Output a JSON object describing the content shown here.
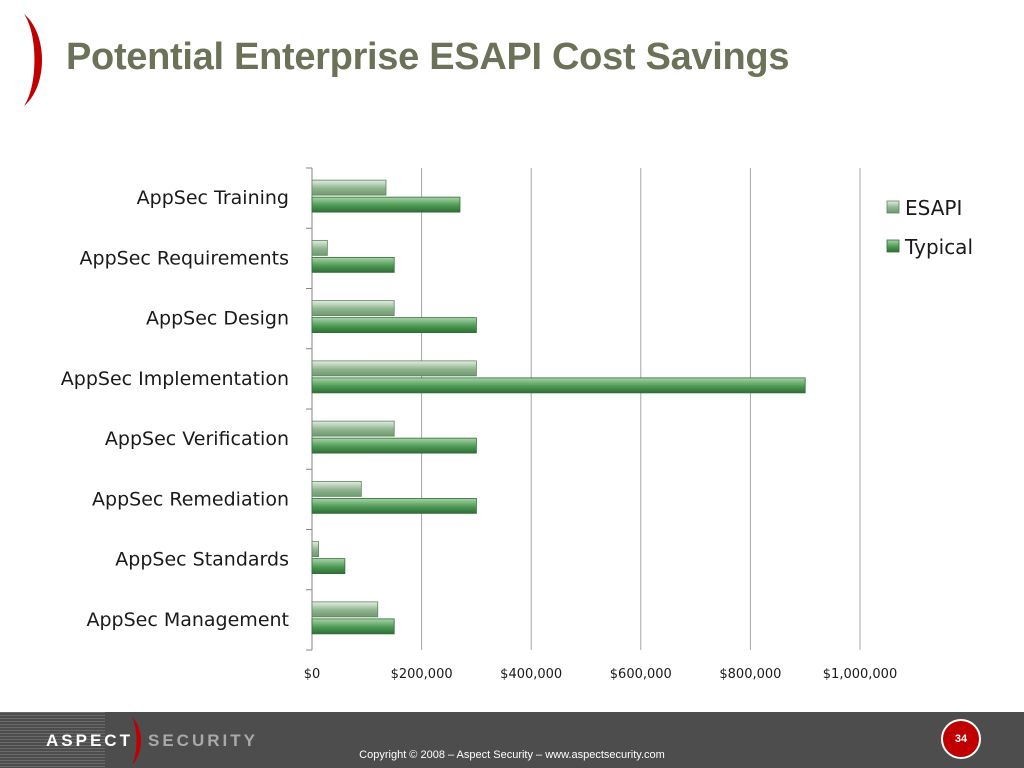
{
  "slide": {
    "title": "Potential Enterprise ESAPI Cost Savings",
    "page_number": "34"
  },
  "footer": {
    "logo_left": "ASPECT",
    "logo_right": "SECURITY",
    "copyright": "Copyright © 2008 – Aspect Security – www.aspectsecurity.com"
  },
  "colors": {
    "title": "#6b7257",
    "accent_red": "#c00000",
    "esapi_bar": "#9dbf9d",
    "typical_bar": "#4e9a55",
    "footer_bg": "#4d4d4d"
  },
  "chart_data": {
    "type": "bar",
    "orientation": "horizontal",
    "categories": [
      "AppSec Training",
      "AppSec Requirements",
      "AppSec Design",
      "AppSec Implementation",
      "AppSec Verification",
      "AppSec Remediation",
      "AppSec Standards",
      "AppSec Management"
    ],
    "series": [
      {
        "name": "ESAPI",
        "values": [
          135000,
          28000,
          150000,
          300000,
          150000,
          90000,
          12000,
          120000
        ]
      },
      {
        "name": "Typical",
        "values": [
          270000,
          150000,
          300000,
          900000,
          300000,
          300000,
          60000,
          150000
        ]
      }
    ],
    "xlim": [
      0,
      1000000
    ],
    "xticks": [
      0,
      200000,
      400000,
      600000,
      800000,
      1000000
    ],
    "xtick_labels": [
      "$0",
      "$200,000",
      "$400,000",
      "$600,000",
      "$800,000",
      "$1,000,000"
    ],
    "grid": "vertical",
    "legend": "top-right"
  }
}
